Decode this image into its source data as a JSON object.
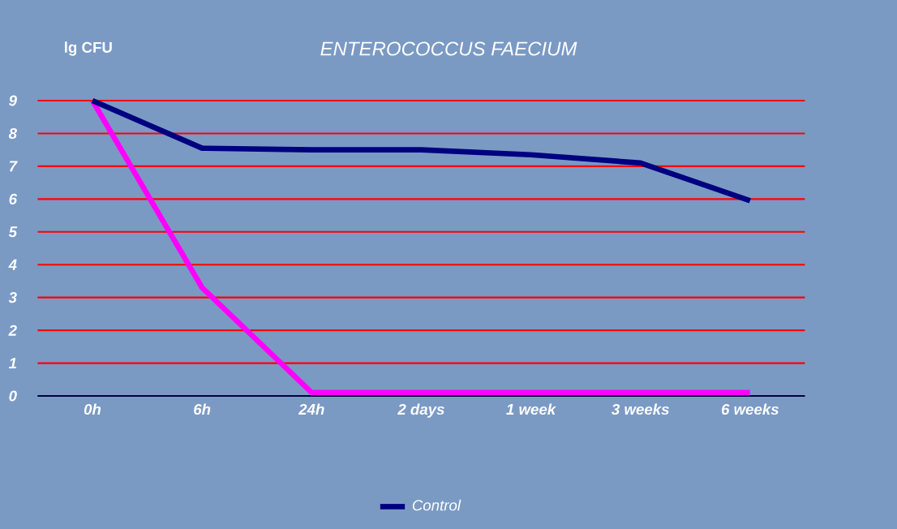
{
  "chart_data": {
    "type": "line",
    "title": "ENTEROCOCCUS FAECIUM",
    "ylabel": "lg CFU",
    "categories": [
      "0h",
      "6h",
      "24h",
      "2 days",
      "1 week",
      "3 weeks",
      "6 weeks"
    ],
    "series": [
      {
        "color": "#ff00ff",
        "values": [
          9,
          3.3,
          0.1,
          0.1,
          0.1,
          0.1,
          0.1
        ]
      },
      {
        "name": "Control",
        "color": "#000080",
        "values": [
          9,
          7.55,
          7.5,
          7.5,
          7.35,
          7.1,
          5.95
        ]
      }
    ],
    "ylim": [
      0,
      9
    ],
    "yticks": [
      0,
      1,
      2,
      3,
      4,
      5,
      6,
      7,
      8,
      9
    ],
    "grid": "y",
    "legend": "bottom",
    "marker": "none",
    "line_style": "solid"
  }
}
